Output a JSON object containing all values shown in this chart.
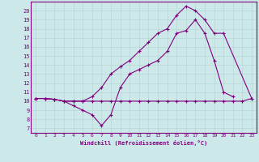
{
  "xlabel": "Windchill (Refroidissement éolien,°C)",
  "xlim": [
    -0.5,
    23.5
  ],
  "ylim": [
    6.5,
    21.0
  ],
  "yticks": [
    7,
    8,
    9,
    10,
    11,
    12,
    13,
    14,
    15,
    16,
    17,
    18,
    19,
    20
  ],
  "xticks": [
    0,
    1,
    2,
    3,
    4,
    5,
    6,
    7,
    8,
    9,
    10,
    11,
    12,
    13,
    14,
    15,
    16,
    17,
    18,
    19,
    20,
    21,
    22,
    23
  ],
  "bg_color": "#cce8e8",
  "line_color": "#800080",
  "grid_color": "#b8d8d8",
  "line1_x": [
    0,
    1,
    2,
    3,
    4,
    5,
    6,
    7,
    8,
    9,
    10,
    11,
    12,
    13,
    14,
    15,
    16,
    17,
    18,
    19,
    20,
    21,
    22,
    23
  ],
  "line1_y": [
    10.3,
    10.3,
    10.2,
    10.0,
    10.0,
    10.0,
    10.0,
    10.0,
    10.0,
    10.0,
    10.0,
    10.0,
    10.0,
    10.0,
    10.0,
    10.0,
    10.0,
    10.0,
    10.0,
    10.0,
    10.0,
    10.0,
    10.0,
    10.3
  ],
  "line2_x": [
    0,
    1,
    2,
    3,
    4,
    5,
    6,
    7,
    8,
    9,
    10,
    11,
    12,
    13,
    14,
    15,
    16,
    17,
    18,
    19,
    20,
    21
  ],
  "line2_y": [
    10.3,
    10.3,
    10.2,
    10.0,
    9.5,
    9.0,
    8.5,
    7.3,
    8.5,
    11.5,
    13.0,
    13.5,
    14.0,
    14.5,
    15.5,
    17.5,
    17.8,
    19.0,
    17.5,
    14.5,
    11.0,
    10.5
  ],
  "line3_x": [
    0,
    1,
    2,
    3,
    4,
    5,
    6,
    7,
    8,
    9,
    10,
    11,
    12,
    13,
    14,
    15,
    16,
    17,
    18,
    19,
    20,
    23
  ],
  "line3_y": [
    10.3,
    10.3,
    10.2,
    10.0,
    10.0,
    10.0,
    10.5,
    11.5,
    13.0,
    13.8,
    14.5,
    15.5,
    16.5,
    17.5,
    18.0,
    19.5,
    20.5,
    20.0,
    19.0,
    17.5,
    17.5,
    10.3
  ],
  "marker": "+"
}
